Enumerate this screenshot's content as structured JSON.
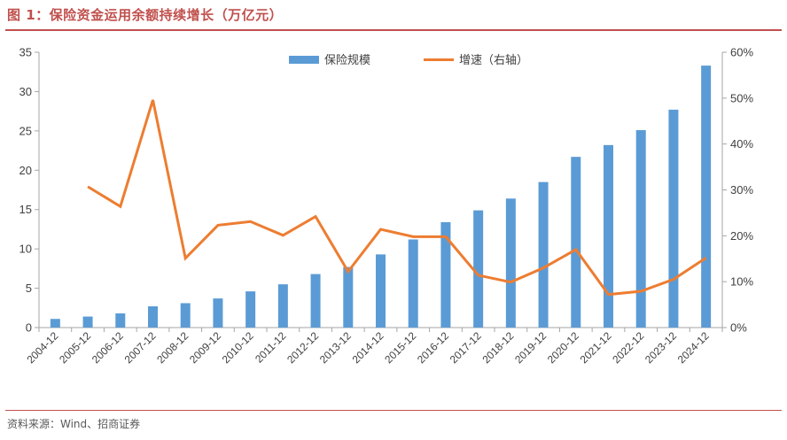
{
  "header": {
    "title": "图 1：保险资金运用余额持续增长（万亿元）"
  },
  "footer": {
    "source": "资料来源：Wind、招商证券"
  },
  "colors": {
    "accent": "#c0504d",
    "bar": "#5b9bd5",
    "line": "#ed7d31",
    "axis": "#a6a6a6",
    "text": "#404040"
  },
  "chart_data": {
    "type": "bar",
    "title": "保险资金运用余额持续增长（万亿元）",
    "categories": [
      "2004-12",
      "2005-12",
      "2006-12",
      "2007-12",
      "2008-12",
      "2009-12",
      "2010-12",
      "2011-12",
      "2012-12",
      "2013-12",
      "2014-12",
      "2015-12",
      "2016-12",
      "2017-12",
      "2018-12",
      "2019-12",
      "2020-12",
      "2021-12",
      "2022-12",
      "2023-12",
      "2024-12"
    ],
    "series": [
      {
        "name": "保险规模",
        "type": "bar",
        "axis": "left",
        "values": [
          1.1,
          1.4,
          1.8,
          2.7,
          3.1,
          3.7,
          4.6,
          5.5,
          6.8,
          7.7,
          9.3,
          11.2,
          13.4,
          14.9,
          16.4,
          18.5,
          21.7,
          23.2,
          25.1,
          27.7,
          33.3
        ]
      },
      {
        "name": "增速（右轴）",
        "type": "line",
        "axis": "right",
        "values": [
          null,
          30.7,
          26.4,
          49.6,
          15.1,
          22.3,
          23.1,
          20.1,
          24.2,
          12.2,
          21.4,
          19.8,
          19.8,
          11.4,
          9.9,
          13.0,
          17.0,
          7.2,
          7.9,
          10.5,
          15.2
        ]
      }
    ],
    "left_axis": {
      "min": 0,
      "max": 35,
      "step": 5,
      "tick_labels": [
        "0",
        "5",
        "10",
        "15",
        "20",
        "25",
        "30",
        "35"
      ]
    },
    "right_axis": {
      "min": 0,
      "max": 60,
      "step": 10,
      "tick_labels": [
        "0%",
        "10%",
        "20%",
        "30%",
        "40%",
        "50%",
        "60%"
      ]
    },
    "legend": {
      "position": "top-center",
      "entries": [
        "保险规模",
        "增速（右轴）"
      ]
    },
    "grid": false
  }
}
